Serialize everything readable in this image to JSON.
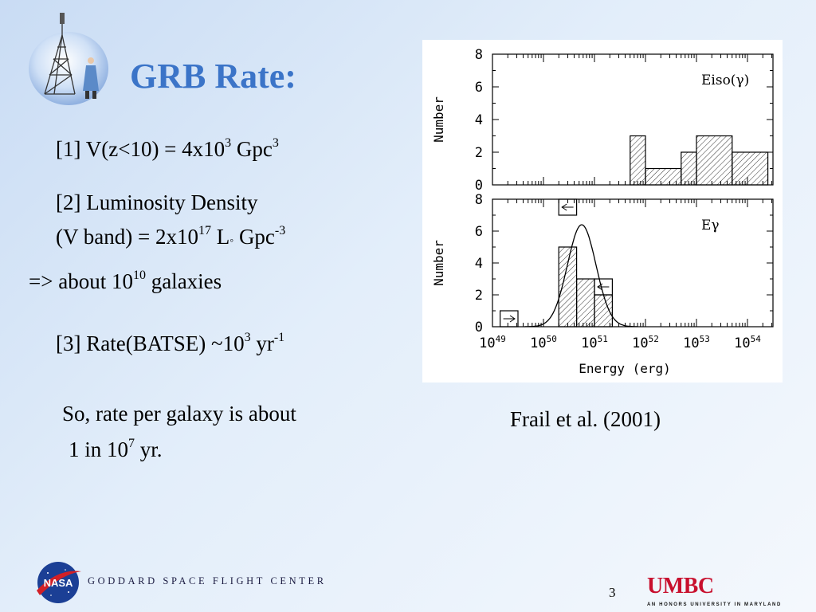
{
  "slide": {
    "title": "GRB Rate:",
    "item1": {
      "prefix": "[1] V(z<10) = 4x10",
      "exp1": "3",
      "unit": " Gpc",
      "exp2": "3"
    },
    "item2": {
      "line1": "[2] Luminosity Density",
      "prefix": "(V band) = 2x10",
      "exp1": "17",
      "unit": " L",
      "sun": "◦",
      "unit2": " Gpc",
      "exp2": "-3"
    },
    "item2_result": {
      "prefix": "=> about 10",
      "exp": "10",
      "suffix": " galaxies"
    },
    "item3": {
      "prefix": "[3] Rate(BATSE) ~10",
      "exp1": "3",
      "unit": " yr",
      "exp2": "-1"
    },
    "conclusion": {
      "line1": "So, rate per galaxy is about",
      "prefix": " 1 in 10",
      "exp": "7",
      "suffix": " yr."
    },
    "caption": "Frail et al. (2001)",
    "page_number": "3"
  },
  "footer": {
    "center_name": "GODDARD SPACE FLIGHT CENTER",
    "nasa_text": "NASA",
    "umbc_text": "UMBC",
    "umbc_tagline": "AN HONORS UNIVERSITY IN MARYLAND"
  },
  "chart_data": [
    {
      "type": "bar",
      "panel": "top",
      "label": "Eiso(γ)",
      "ylabel": "Number",
      "ylim": [
        0,
        8
      ],
      "yticks": [
        "0",
        "2",
        "4",
        "6",
        "8"
      ],
      "x_log_range": [
        49,
        54.5
      ],
      "bins": [
        {
          "x0": 51.7,
          "x1": 52.0,
          "count": 3
        },
        {
          "x0": 52.0,
          "x1": 52.7,
          "count": 1
        },
        {
          "x0": 52.7,
          "x1": 53.0,
          "count": 2
        },
        {
          "x0": 53.0,
          "x1": 53.7,
          "count": 3
        },
        {
          "x0": 53.7,
          "x1": 54.4,
          "count": 2
        }
      ]
    },
    {
      "type": "bar",
      "panel": "bottom",
      "label": "Eγ",
      "ylabel": "Number",
      "xlabel": "Energy (erg)",
      "ylim": [
        0,
        8
      ],
      "yticks": [
        "0",
        "2",
        "4",
        "6",
        "8"
      ],
      "x_log_range": [
        49,
        54.5
      ],
      "xticks": [
        {
          "base": "10",
          "exp": "49"
        },
        {
          "base": "10",
          "exp": "50"
        },
        {
          "base": "10",
          "exp": "51"
        },
        {
          "base": "10",
          "exp": "52"
        },
        {
          "base": "10",
          "exp": "53"
        },
        {
          "base": "10",
          "exp": "54"
        }
      ],
      "bins": [
        {
          "x0": 50.3,
          "x1": 50.65,
          "count": 5
        },
        {
          "x0": 50.65,
          "x1": 51.0,
          "count": 3
        },
        {
          "x0": 51.0,
          "x1": 51.35,
          "count": 2
        }
      ],
      "limits": [
        {
          "x0": 49.15,
          "x1": 49.5,
          "count": 1
        },
        {
          "x0": 50.3,
          "x1": 50.65,
          "count": 8
        },
        {
          "x0": 51.0,
          "x1": 51.35,
          "count": 3
        }
      ],
      "gaussian": {
        "mean_log": 50.75,
        "sigma_log": 0.28,
        "peak": 6.4
      }
    }
  ]
}
